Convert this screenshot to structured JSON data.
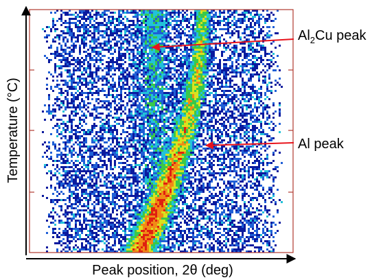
{
  "chart_data": {
    "type": "heatmap",
    "title": "",
    "xlabel": "Peak position, 2θ (deg)",
    "ylabel": "Temperature (°C)",
    "x_ticks_shown": false,
    "y_ticks_shown": false,
    "colormap": [
      "#ffffff",
      "#0a1a9e",
      "#1f5fd6",
      "#22c2d8",
      "#39c84a",
      "#d8e21f",
      "#f08a16",
      "#e02010"
    ],
    "frame_color": "#b03a2e",
    "annotations": [
      {
        "label_main": "Al",
        "label_sub": "2",
        "label_tail": "Cu peak",
        "color": "#e8141c"
      },
      {
        "label_main": "Al peak",
        "label_sub": "",
        "label_tail": "",
        "color": "#e8141c"
      }
    ],
    "grid": false
  }
}
